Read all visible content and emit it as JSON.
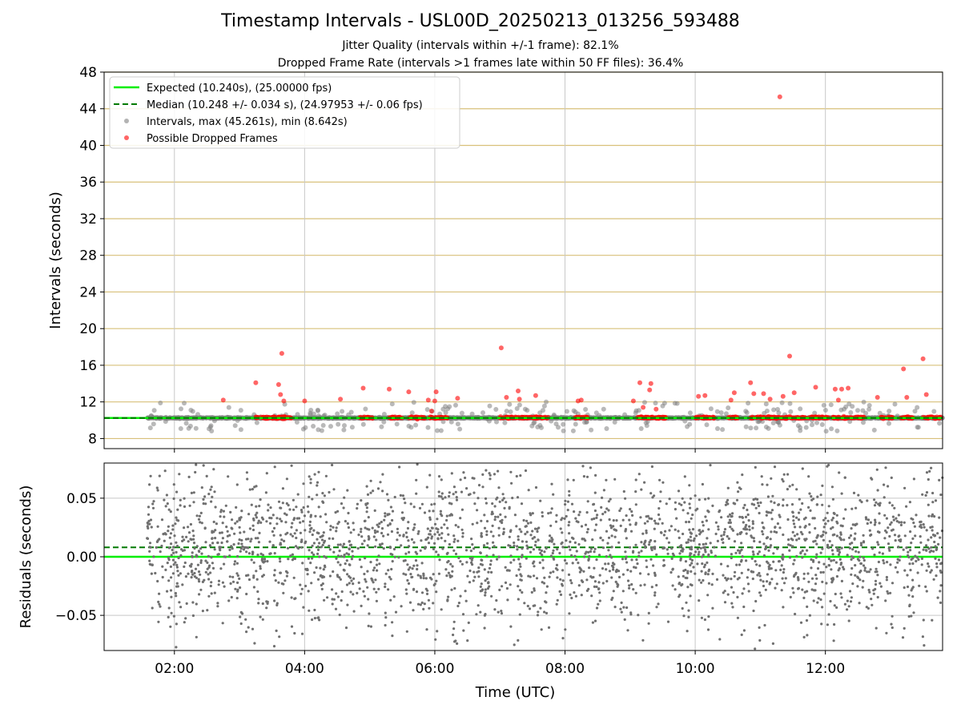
{
  "header": {
    "title": "Timestamp Intervals - USL00D_20250213_013256_593488",
    "subtitle_jitter": "Jitter Quality (intervals within +/-1 frame): 82.1%",
    "subtitle_dropped": "Dropped Frame Rate (intervals >1 frames late within 50 FF files): 36.4%"
  },
  "colors": {
    "expected_line": "#00ee00",
    "median_line": "#007a00",
    "intervals_points": "#808080",
    "dropped_points": "#ff0000",
    "hgrid_gold": "#d8c07a",
    "grid_gray": "#c8c8c8"
  },
  "chart_data": [
    {
      "type": "scatter",
      "ylabel": "Intervals (seconds)",
      "xlim": [
        0.92,
        13.8
      ],
      "ylim": [
        6.9,
        48
      ],
      "y_ticks": [
        "8",
        "12",
        "16",
        "20",
        "24",
        "28",
        "32",
        "36",
        "40",
        "44",
        "48"
      ],
      "y_tick_values": [
        8,
        12,
        16,
        20,
        24,
        28,
        32,
        36,
        40,
        44,
        48
      ],
      "grid": "horizontal gold lines; vertical gray lines at x ticks",
      "legend_position": "top-left",
      "legend": [
        "Expected (10.240s), (25.00000 fps)",
        "Median (10.248 +/- 0.034 s), (24.97953 +/- 0.06 fps)",
        "Intervals, max (45.261s), min (8.642s)",
        "Possible Dropped Frames"
      ],
      "expected_interval": 10.24,
      "median_interval": 10.248,
      "data_range_hours": [
        1.58,
        13.8
      ],
      "intervals_max": 45.261,
      "intervals_min": 8.642,
      "dropped_frames": [
        [
          2.75,
          12.2
        ],
        [
          3.25,
          14.1
        ],
        [
          3.6,
          13.9
        ],
        [
          3.63,
          12.8
        ],
        [
          3.65,
          17.3
        ],
        [
          3.68,
          12.1
        ],
        [
          4.0,
          12.1
        ],
        [
          4.55,
          12.3
        ],
        [
          4.9,
          13.5
        ],
        [
          5.3,
          13.4
        ],
        [
          5.6,
          13.1
        ],
        [
          5.9,
          12.2
        ],
        [
          5.95,
          11.0
        ],
        [
          6.0,
          12.1
        ],
        [
          6.02,
          13.1
        ],
        [
          6.35,
          12.4
        ],
        [
          7.02,
          17.9
        ],
        [
          7.1,
          12.5
        ],
        [
          7.28,
          13.2
        ],
        [
          7.3,
          12.3
        ],
        [
          7.55,
          12.7
        ],
        [
          8.2,
          12.1
        ],
        [
          8.25,
          12.2
        ],
        [
          9.05,
          12.1
        ],
        [
          9.15,
          14.1
        ],
        [
          9.2,
          11.4
        ],
        [
          9.3,
          13.3
        ],
        [
          9.32,
          14.0
        ],
        [
          9.4,
          11.2
        ],
        [
          10.05,
          12.6
        ],
        [
          10.15,
          12.7
        ],
        [
          10.55,
          12.2
        ],
        [
          10.6,
          13.0
        ],
        [
          10.85,
          14.1
        ],
        [
          10.9,
          12.9
        ],
        [
          11.05,
          12.9
        ],
        [
          11.15,
          12.3
        ],
        [
          11.3,
          45.3
        ],
        [
          11.35,
          12.6
        ],
        [
          11.45,
          17.0
        ],
        [
          11.52,
          13.0
        ],
        [
          11.85,
          13.6
        ],
        [
          12.15,
          13.4
        ],
        [
          12.2,
          12.2
        ],
        [
          12.25,
          13.4
        ],
        [
          12.35,
          13.5
        ],
        [
          12.8,
          12.5
        ],
        [
          13.2,
          15.6
        ],
        [
          13.25,
          12.5
        ],
        [
          13.5,
          16.7
        ],
        [
          13.55,
          12.8
        ]
      ]
    },
    {
      "type": "scatter",
      "xlabel": "Time (UTC)",
      "ylabel": "Residuals (seconds)",
      "xlim": [
        0.92,
        13.8
      ],
      "ylim": [
        -0.08,
        0.08
      ],
      "x_ticks": [
        "02:00",
        "04:00",
        "06:00",
        "08:00",
        "10:00",
        "12:00"
      ],
      "x_tick_values": [
        2,
        4,
        6,
        8,
        10,
        12
      ],
      "y_ticks": [
        "0.05",
        "0.00",
        "−0.05"
      ],
      "y_tick_values": [
        0.05,
        0,
        -0.05
      ],
      "expected_residual": 0,
      "median_residual": 0.008,
      "residual_spread_std": 0.034
    }
  ]
}
